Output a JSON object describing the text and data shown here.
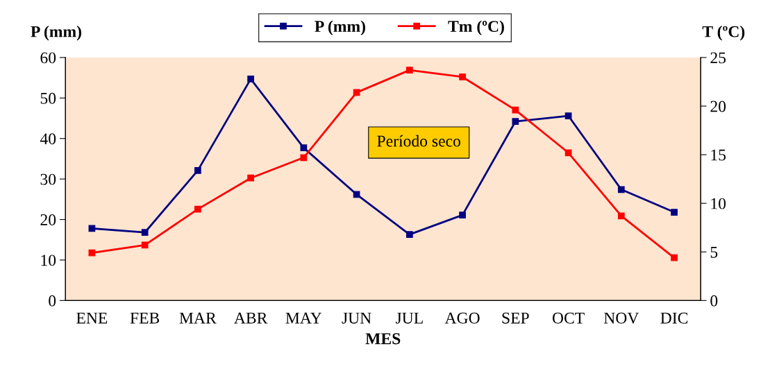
{
  "chart_data": {
    "type": "line",
    "xlabel": "MES",
    "ylabel": "P (mm)",
    "y2label": "T (ºC)",
    "categories": [
      "ENE",
      "FEB",
      "MAR",
      "ABR",
      "MAY",
      "JUN",
      "JUL",
      "AGO",
      "SEP",
      "OCT",
      "NOV",
      "DIC"
    ],
    "series": [
      {
        "name": "P (mm)",
        "color": "#000080",
        "values": [
          17.8,
          16.8,
          32.1,
          54.7,
          37.7,
          26.2,
          16.3,
          21.1,
          44.2,
          45.6,
          27.4,
          21.8
        ]
      },
      {
        "name": "Tm (ºC)",
        "color": "#ff0000",
        "axis": "y2",
        "values": [
          4.9,
          5.7,
          9.4,
          12.6,
          14.7,
          21.4,
          23.7,
          23.0,
          19.6,
          15.2,
          8.7,
          4.4
        ]
      }
    ],
    "ylim": [
      0,
      60
    ],
    "yticks": [
      0,
      10,
      20,
      30,
      40,
      50,
      60
    ],
    "y2lim": [
      0,
      25
    ],
    "y2ticks": [
      0,
      5,
      10,
      15,
      20,
      25
    ],
    "annotations": [
      "Período seco"
    ],
    "marker": "square",
    "line_style": "solid",
    "grid": false,
    "legend": "top"
  }
}
